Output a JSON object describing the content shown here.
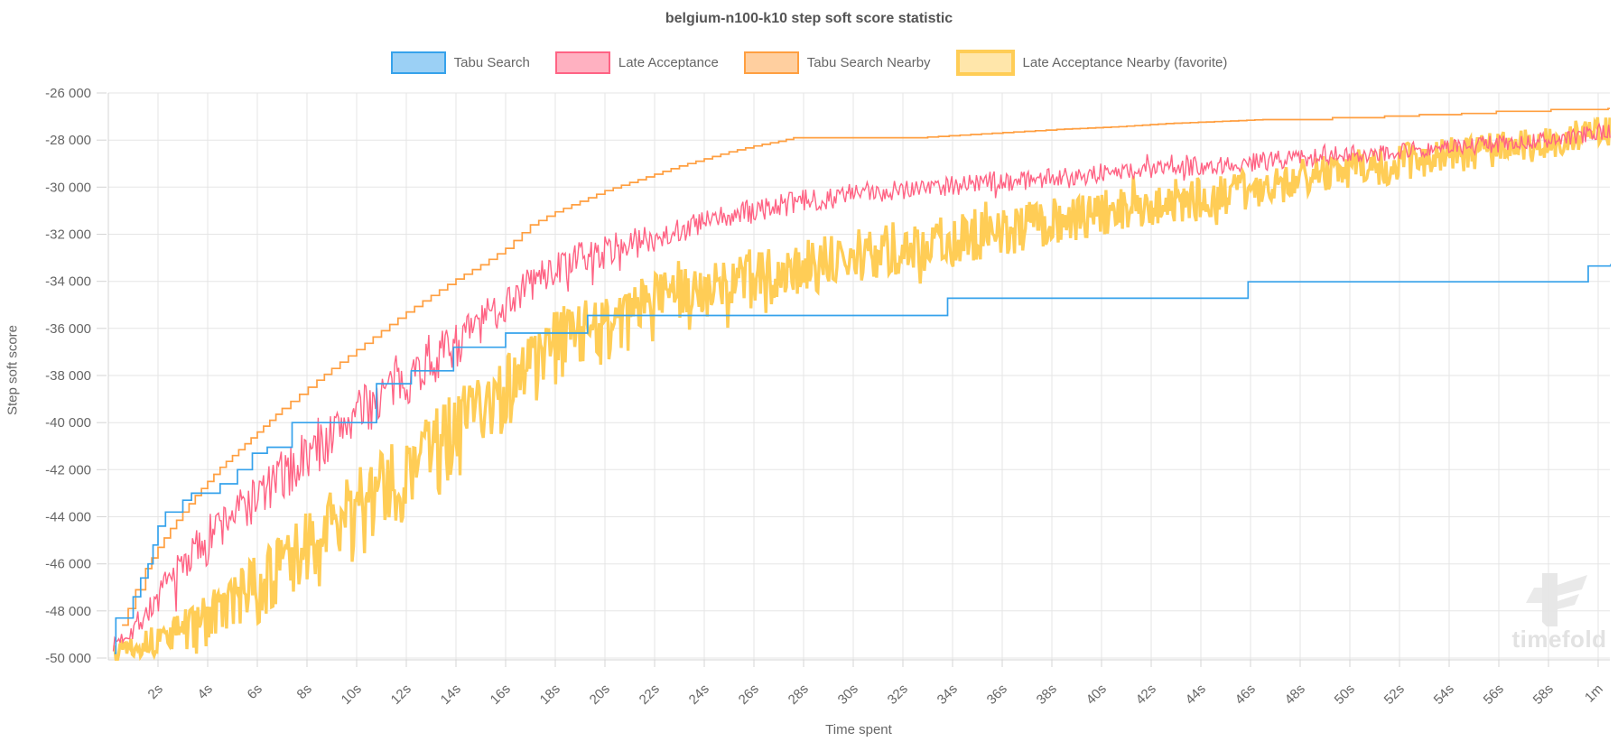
{
  "title": "belgium-n100-k10 step soft score statistic",
  "watermark": {
    "text": "timefold"
  },
  "legend": [
    {
      "label": "Tabu Search",
      "fill": "#9BD0F5",
      "border": "#36A2EB",
      "border_width": 2
    },
    {
      "label": "Late Acceptance",
      "fill": "#FFB1C1",
      "border": "#FF6384",
      "border_width": 2
    },
    {
      "label": "Tabu Search Nearby",
      "fill": "#FFCF9F",
      "border": "#FF9F40",
      "border_width": 2
    },
    {
      "label": "Late Acceptance Nearby (favorite)",
      "fill": "#FFE6AA",
      "border": "#FFCD56",
      "border_width": 4
    }
  ],
  "axes": {
    "x_title": "Time spent",
    "y_title": "Step soft score",
    "grid_color": "#e5e5e5",
    "axis_color": "#d4d4d4",
    "tick_text_color": "#666",
    "y_ticks": [
      {
        "label": "-26 000",
        "value": -26000
      },
      {
        "label": "-28 000",
        "value": -28000
      },
      {
        "label": "-30 000",
        "value": -30000
      },
      {
        "label": "-32 000",
        "value": -32000
      },
      {
        "label": "-34 000",
        "value": -34000
      },
      {
        "label": "-36 000",
        "value": -36000
      },
      {
        "label": "-38 000",
        "value": -38000
      },
      {
        "label": "-40 000",
        "value": -40000
      },
      {
        "label": "-42 000",
        "value": -42000
      },
      {
        "label": "-44 000",
        "value": -44000
      },
      {
        "label": "-46 000",
        "value": -46000
      },
      {
        "label": "-48 000",
        "value": -48000
      },
      {
        "label": "-50 000",
        "value": -50000
      }
    ],
    "x_ticks": [
      {
        "label": "2s",
        "t": 2
      },
      {
        "label": "4s",
        "t": 4
      },
      {
        "label": "6s",
        "t": 6
      },
      {
        "label": "8s",
        "t": 8
      },
      {
        "label": "10s",
        "t": 10
      },
      {
        "label": "12s",
        "t": 12
      },
      {
        "label": "14s",
        "t": 14
      },
      {
        "label": "16s",
        "t": 16
      },
      {
        "label": "18s",
        "t": 18
      },
      {
        "label": "20s",
        "t": 20
      },
      {
        "label": "22s",
        "t": 22
      },
      {
        "label": "24s",
        "t": 24
      },
      {
        "label": "26s",
        "t": 26
      },
      {
        "label": "28s",
        "t": 28
      },
      {
        "label": "30s",
        "t": 30
      },
      {
        "label": "32s",
        "t": 32
      },
      {
        "label": "34s",
        "t": 34
      },
      {
        "label": "36s",
        "t": 36
      },
      {
        "label": "38s",
        "t": 38
      },
      {
        "label": "40s",
        "t": 40
      },
      {
        "label": "42s",
        "t": 42
      },
      {
        "label": "44s",
        "t": 44
      },
      {
        "label": "46s",
        "t": 46
      },
      {
        "label": "48s",
        "t": 48
      },
      {
        "label": "50s",
        "t": 50
      },
      {
        "label": "52s",
        "t": 52
      },
      {
        "label": "54s",
        "t": 54
      },
      {
        "label": "56s",
        "t": 56
      },
      {
        "label": "58s",
        "t": 58
      },
      {
        "label": "1m",
        "t": 60
      }
    ]
  },
  "chart_data": {
    "type": "line",
    "title": "belgium-n100-k10 step soft score statistic",
    "xlabel": "Time spent",
    "ylabel": "Step soft score",
    "x_unit": "seconds",
    "xlim": [
      0,
      60.5
    ],
    "ylim": [
      -50000,
      -26000
    ],
    "grid": true,
    "legend_position": "top",
    "series": [
      {
        "name": "Tabu Search",
        "color": "#36A2EB",
        "width": 1.7,
        "render": "step",
        "micro_steps": false,
        "z": 4,
        "seed": 3,
        "points": [
          [
            0.25,
            -49800
          ],
          [
            0.3,
            -48300
          ],
          [
            1.0,
            -47400
          ],
          [
            1.3,
            -46600
          ],
          [
            1.6,
            -46000
          ],
          [
            1.8,
            -45200
          ],
          [
            2.0,
            -44400
          ],
          [
            2.3,
            -43800
          ],
          [
            3.0,
            -43300
          ],
          [
            3.35,
            -43000
          ],
          [
            4.5,
            -42600
          ],
          [
            5.2,
            -42000
          ],
          [
            5.8,
            -41300
          ],
          [
            6.4,
            -41050
          ],
          [
            7.4,
            -40000
          ],
          [
            10.8,
            -38350
          ],
          [
            12.2,
            -37800
          ],
          [
            13.9,
            -36800
          ],
          [
            16.0,
            -36200
          ],
          [
            19.3,
            -35450
          ],
          [
            33.8,
            -34720
          ],
          [
            45.9,
            -34020
          ],
          [
            59.6,
            -33350
          ],
          [
            60.5,
            -33300
          ]
        ]
      },
      {
        "name": "Late Acceptance",
        "color": "#FF6384",
        "width": 1.4,
        "render": "noisy",
        "z": 3,
        "seed": 7,
        "t_start": 0.2,
        "spike_p": 0.05,
        "spike_f": 1.7,
        "points": [
          [
            0.2,
            -49400
          ],
          [
            1,
            -48700
          ],
          [
            2,
            -47400
          ],
          [
            3,
            -45900
          ],
          [
            4,
            -44700
          ],
          [
            5,
            -43800
          ],
          [
            6,
            -43000
          ],
          [
            7,
            -42200
          ],
          [
            8,
            -41300
          ],
          [
            9,
            -40400
          ],
          [
            10,
            -39500
          ],
          [
            11,
            -38700
          ],
          [
            12,
            -38000
          ],
          [
            13,
            -37200
          ],
          [
            14,
            -36500
          ],
          [
            15,
            -35700
          ],
          [
            16,
            -34800
          ],
          [
            17,
            -34000
          ],
          [
            18,
            -33400
          ],
          [
            19,
            -33000
          ],
          [
            20,
            -32700
          ],
          [
            22,
            -32100
          ],
          [
            24,
            -31500
          ],
          [
            26,
            -31000
          ],
          [
            28,
            -30600
          ],
          [
            30,
            -30300
          ],
          [
            32,
            -30050
          ],
          [
            34,
            -29900
          ],
          [
            36,
            -29750
          ],
          [
            38,
            -29600
          ],
          [
            40,
            -29400
          ],
          [
            42,
            -29250
          ],
          [
            44,
            -29100
          ],
          [
            46,
            -28950
          ],
          [
            48,
            -28750
          ],
          [
            50,
            -28600
          ],
          [
            52,
            -28450
          ],
          [
            54,
            -28300
          ],
          [
            56,
            -28150
          ],
          [
            58,
            -28000
          ],
          [
            59.3,
            -27850
          ],
          [
            60.2,
            -27600
          ],
          [
            60.5,
            -27600
          ]
        ],
        "amp": [
          [
            0.3,
            200
          ],
          [
            1,
            350
          ],
          [
            3,
            700
          ],
          [
            6,
            850
          ],
          [
            10,
            850
          ],
          [
            14,
            800
          ],
          [
            18,
            650
          ],
          [
            24,
            550
          ],
          [
            30,
            480
          ],
          [
            38,
            430
          ],
          [
            46,
            400
          ],
          [
            54,
            380
          ],
          [
            60.5,
            350
          ]
        ],
        "down_bias": [
          [
            0,
            1.6
          ],
          [
            14,
            1.5
          ],
          [
            25,
            1.0
          ],
          [
            60.5,
            1.0
          ]
        ]
      },
      {
        "name": "Tabu Search Nearby",
        "color": "#FF9F40",
        "width": 1.7,
        "render": "step",
        "micro_steps": true,
        "z": 2,
        "seed": 5,
        "points": [
          [
            0.55,
            -48600
          ],
          [
            0.8,
            -47900
          ],
          [
            1.1,
            -47100
          ],
          [
            1.5,
            -46200
          ],
          [
            2.0,
            -45300
          ],
          [
            2.5,
            -44500
          ],
          [
            3.0,
            -43800
          ],
          [
            3.5,
            -43100
          ],
          [
            4.0,
            -42500
          ],
          [
            4.5,
            -41900
          ],
          [
            5.0,
            -41400
          ],
          [
            5.5,
            -40900
          ],
          [
            6.0,
            -40400
          ],
          [
            6.5,
            -39900
          ],
          [
            7.0,
            -39400
          ],
          [
            7.7,
            -38800
          ],
          [
            8.4,
            -38200
          ],
          [
            9.0,
            -37700
          ],
          [
            10.0,
            -36900
          ],
          [
            11.0,
            -36100
          ],
          [
            12.0,
            -35300
          ],
          [
            13.0,
            -34600
          ],
          [
            14.0,
            -33900
          ],
          [
            15.0,
            -33300
          ],
          [
            16.0,
            -32600
          ],
          [
            17.0,
            -31600
          ],
          [
            18.0,
            -31050
          ],
          [
            19.0,
            -30600
          ],
          [
            20.0,
            -30150
          ],
          [
            21.0,
            -29800
          ],
          [
            22.0,
            -29450
          ],
          [
            23.0,
            -29100
          ],
          [
            24.0,
            -28800
          ],
          [
            25.0,
            -28500
          ],
          [
            26.0,
            -28250
          ],
          [
            27.0,
            -28050
          ],
          [
            27.6,
            -27900
          ],
          [
            33.0,
            -27870
          ],
          [
            38.2,
            -27550
          ],
          [
            40.7,
            -27430
          ],
          [
            42.6,
            -27300
          ],
          [
            46.5,
            -27130
          ],
          [
            49.3,
            -27050
          ],
          [
            51.4,
            -26980
          ],
          [
            52.8,
            -26920
          ],
          [
            54.5,
            -26870
          ],
          [
            55.9,
            -26780
          ],
          [
            58.1,
            -26700
          ],
          [
            60.4,
            -26660
          ]
        ]
      },
      {
        "name": "Late Acceptance Nearby (favorite)",
        "color": "#FFCD56",
        "width": 3.4,
        "render": "noisy",
        "z": 1,
        "seed": 13,
        "t_start": 0.25,
        "spike_p": 0.05,
        "spike_f": 1.5,
        "points": [
          [
            0.25,
            -49500
          ],
          [
            2,
            -49100
          ],
          [
            4,
            -48100
          ],
          [
            6,
            -46700
          ],
          [
            8,
            -45100
          ],
          [
            10,
            -43400
          ],
          [
            12,
            -41800
          ],
          [
            14,
            -40100
          ],
          [
            16,
            -38300
          ],
          [
            18,
            -36600
          ],
          [
            20,
            -35600
          ],
          [
            22,
            -34900
          ],
          [
            24,
            -34300
          ],
          [
            26,
            -33800
          ],
          [
            28,
            -33350
          ],
          [
            30,
            -32950
          ],
          [
            32,
            -32600
          ],
          [
            34,
            -32300
          ],
          [
            36,
            -31900
          ],
          [
            38,
            -31500
          ],
          [
            40,
            -31100
          ],
          [
            42,
            -30750
          ],
          [
            44,
            -30400
          ],
          [
            46,
            -30100
          ],
          [
            48,
            -29700
          ],
          [
            50,
            -29300
          ],
          [
            52,
            -29000
          ],
          [
            54,
            -28700
          ],
          [
            56,
            -28400
          ],
          [
            58,
            -28100
          ],
          [
            59.5,
            -27850
          ],
          [
            60.5,
            -27600
          ]
        ],
        "amp": [
          [
            0.3,
            250
          ],
          [
            2,
            500
          ],
          [
            4,
            800
          ],
          [
            6,
            1100
          ],
          [
            8,
            1300
          ],
          [
            10,
            1450
          ],
          [
            14,
            1500
          ],
          [
            18,
            1400
          ],
          [
            22,
            1300
          ],
          [
            26,
            1200
          ],
          [
            30,
            1150
          ],
          [
            36,
            1050
          ],
          [
            42,
            950
          ],
          [
            48,
            880
          ],
          [
            54,
            800
          ],
          [
            60.5,
            730
          ]
        ],
        "down_bias": [
          [
            0,
            1.8
          ],
          [
            12,
            1.7
          ],
          [
            30,
            1.0
          ],
          [
            60.5,
            1.0
          ]
        ]
      }
    ]
  }
}
